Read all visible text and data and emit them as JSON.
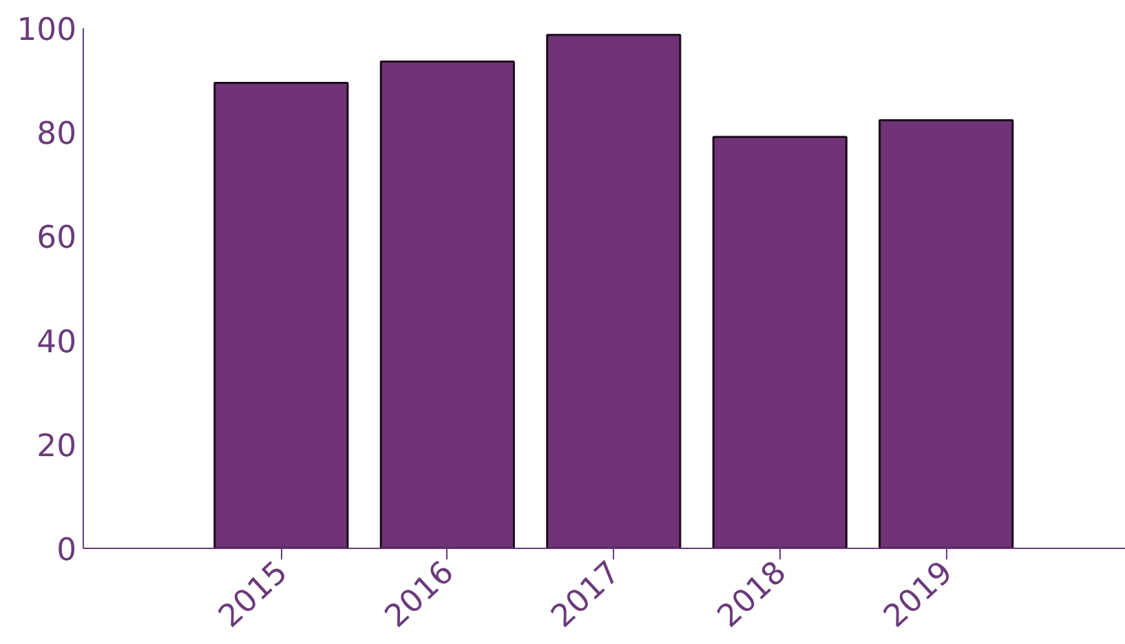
{
  "chart_data": {
    "type": "bar",
    "categories": [
      "2015",
      "2016",
      "2017",
      "2018",
      "2019"
    ],
    "values": [
      89.5,
      93.6,
      98.7,
      79.1,
      82.3
    ],
    "color": "#703377",
    "ylim": [
      0,
      100
    ],
    "yticks": [
      0,
      20,
      40,
      60,
      80,
      100
    ],
    "grid": false
  }
}
